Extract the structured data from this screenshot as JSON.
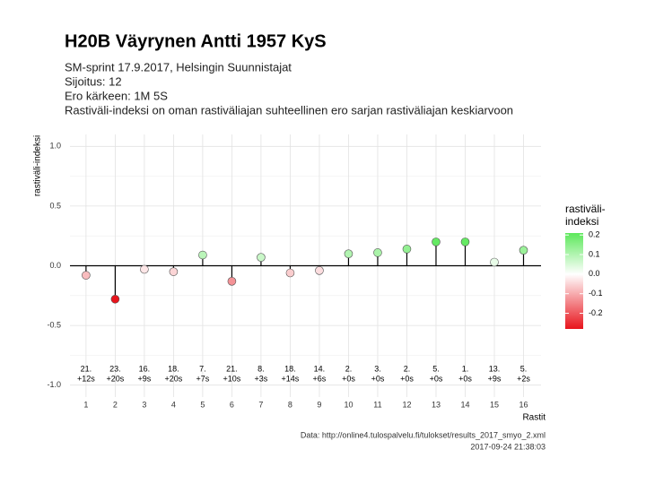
{
  "chart_data": {
    "type": "lollipop",
    "title": "H20B Väyrynen Antti 1957 KyS",
    "subtitle": [
      "SM-sprint 17.9.2017, Helsingin Suunnistajat",
      "Sijoitus: 12",
      "Ero kärkeen: 1M 5S",
      "Rastiväli-indeksi on oman rastiväliajan suhteellinen ero sarjan rastiväliajan keskiarvoon"
    ],
    "y_label": "rastiväli-indeksi",
    "x_label": "Rastit",
    "caption": [
      "Data: http://online4.tulospalvelu.fi/tulokset/results_2017_smyo_2.xml",
      "2017-09-24 21:38:03"
    ],
    "x": [
      1,
      2,
      3,
      4,
      5,
      6,
      7,
      8,
      9,
      10,
      11,
      12,
      13,
      14,
      15,
      16
    ],
    "values": [
      -0.08,
      -0.28,
      -0.03,
      -0.05,
      0.09,
      -0.13,
      0.07,
      -0.06,
      -0.04,
      0.1,
      0.11,
      0.14,
      0.2,
      0.2,
      0.03,
      0.13
    ],
    "point_labels": [
      [
        "21.",
        "+12s"
      ],
      [
        "23.",
        "+20s"
      ],
      [
        "16.",
        "+9s"
      ],
      [
        "18.",
        "+20s"
      ],
      [
        "7.",
        "+7s"
      ],
      [
        "21.",
        "+10s"
      ],
      [
        "8.",
        "+3s"
      ],
      [
        "18.",
        "+14s"
      ],
      [
        "14.",
        "+6s"
      ],
      [
        "2.",
        "+0s"
      ],
      [
        "3.",
        "+0s"
      ],
      [
        "2.",
        "+0s"
      ],
      [
        "5.",
        "+0s"
      ],
      [
        "1.",
        "+0s"
      ],
      [
        "13.",
        "+9s"
      ],
      [
        "5.",
        "+2s"
      ]
    ],
    "xlim": [
      0.45,
      16.6
    ],
    "ylim": [
      -1.1,
      1.1
    ],
    "xticks": [
      1,
      2,
      3,
      4,
      5,
      6,
      7,
      8,
      9,
      10,
      11,
      12,
      13,
      14,
      15,
      16
    ],
    "yticks": [
      {
        "value": -1,
        "label": "-1.0"
      },
      {
        "value": -0.5,
        "label": "-0.5"
      },
      {
        "value": 0,
        "label": "0.0"
      },
      {
        "value": 0.5,
        "label": "0.5"
      },
      {
        "value": 1,
        "label": "1.0"
      }
    ],
    "grid": true,
    "colors": {
      "low": "#e8141c",
      "mid": "#ffffff",
      "high": "#5de85b"
    },
    "legend": {
      "title": [
        "rastiväli-",
        "indeksi"
      ],
      "lim": [
        -0.28,
        0.21
      ],
      "ticks": [
        {
          "value": 0.2,
          "label": "0.2"
        },
        {
          "value": 0.1,
          "label": "0.1"
        },
        {
          "value": 0,
          "label": "0.0"
        },
        {
          "value": -0.1,
          "label": "-0.1"
        },
        {
          "value": -0.2,
          "label": "-0.2"
        }
      ]
    }
  }
}
